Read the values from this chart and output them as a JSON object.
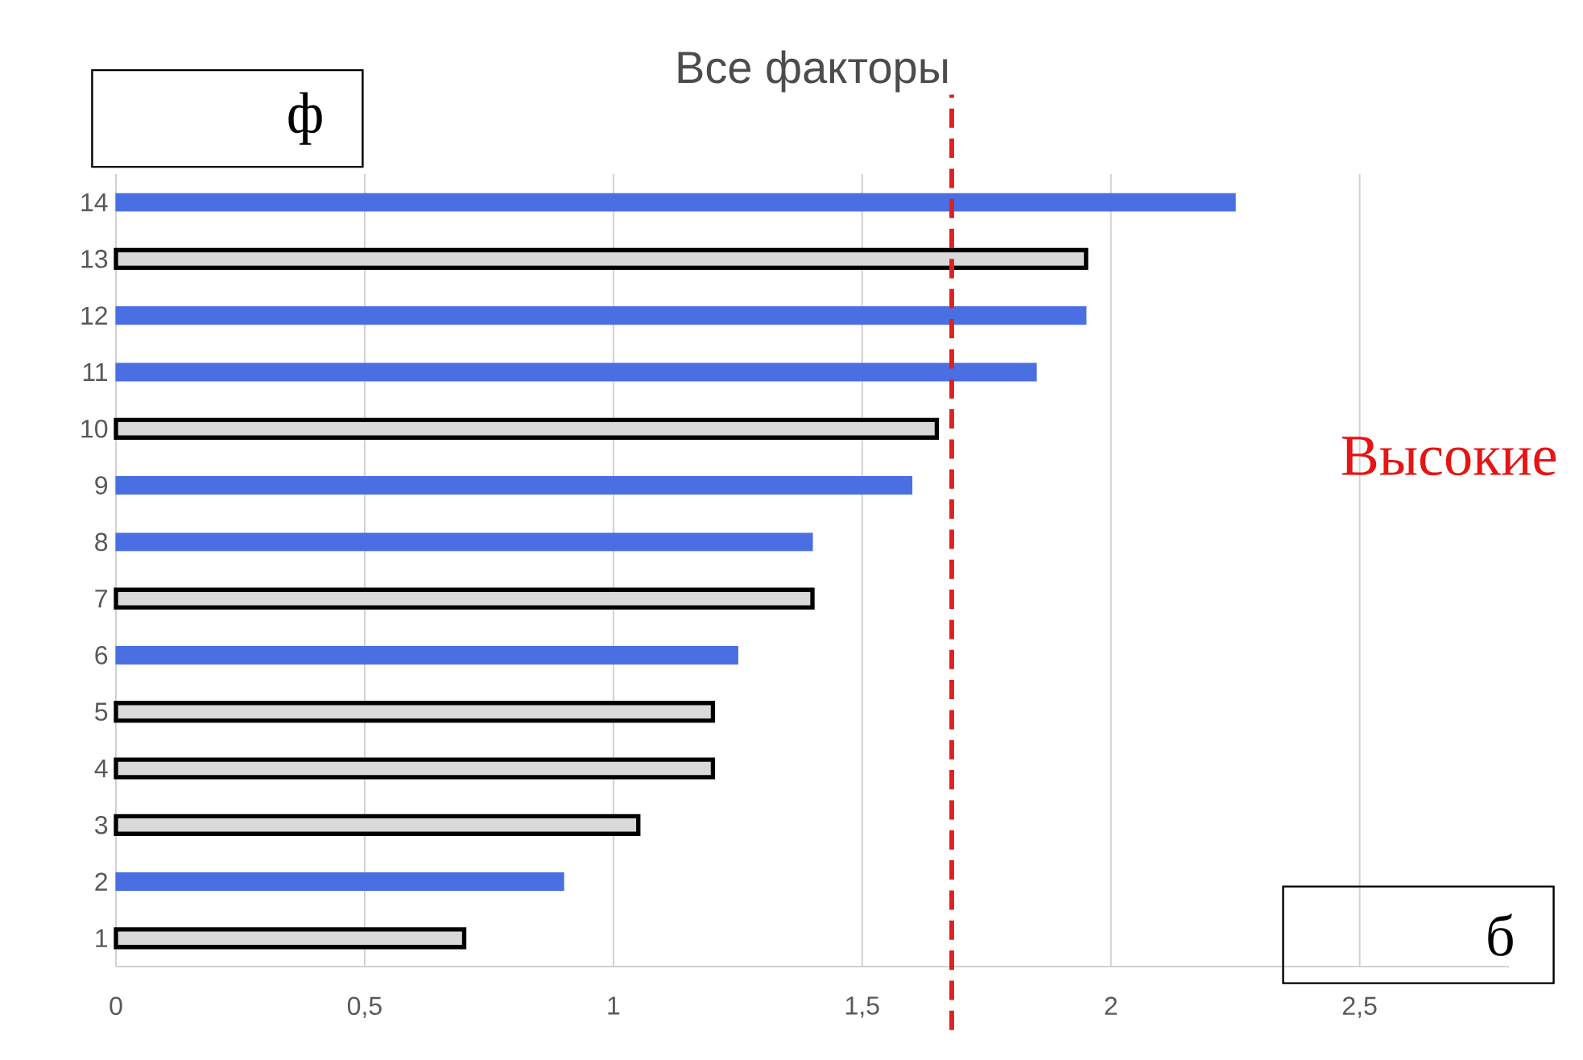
{
  "chart_data": {
    "type": "bar",
    "orientation": "horizontal",
    "title": "Все факторы",
    "categories": [
      "14",
      "13",
      "12",
      "11",
      "10",
      "9",
      "8",
      "7",
      "6",
      "5",
      "4",
      "3",
      "2",
      "1"
    ],
    "values": [
      2.25,
      1.95,
      1.95,
      1.85,
      1.65,
      1.6,
      1.4,
      1.4,
      1.25,
      1.2,
      1.2,
      1.05,
      0.9,
      0.7
    ],
    "colors": [
      "#4a6fe3",
      "#d9d9d9",
      "#4a6fe3",
      "#4a6fe3",
      "#d9d9d9",
      "#4a6fe3",
      "#4a6fe3",
      "#d9d9d9",
      "#4a6fe3",
      "#d9d9d9",
      "#d9d9d9",
      "#d9d9d9",
      "#4a6fe3",
      "#d9d9d9"
    ],
    "xlim": [
      0,
      2.8
    ],
    "xticks": [
      0,
      {
        "value": 0.5,
        "label": "0,5"
      },
      1,
      {
        "value": 1.5,
        "label": "1,5"
      },
      2,
      {
        "value": 2.5,
        "label": "2,5"
      }
    ],
    "grid": "x",
    "ref_lines": [
      {
        "axis": "x",
        "value": 1.68,
        "color": "#e02020",
        "line_style": "dashed"
      }
    ],
    "annotations": [
      "ф",
      "б",
      "Высокие"
    ]
  }
}
